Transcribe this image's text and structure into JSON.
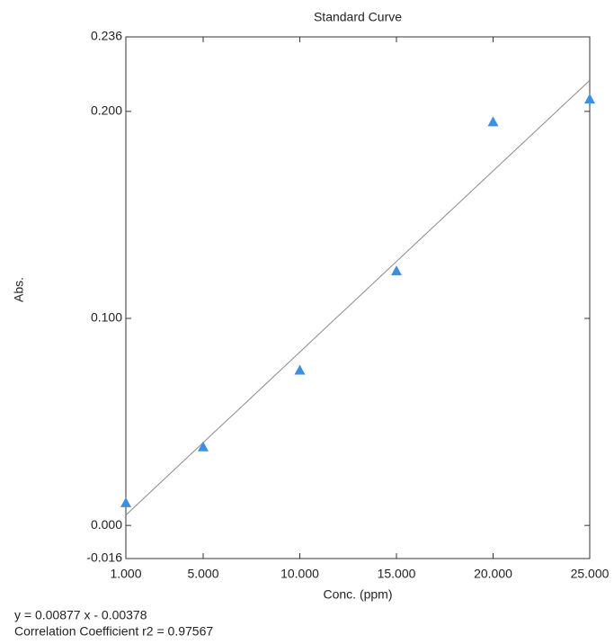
{
  "chart_data": {
    "type": "scatter",
    "title": "Standard Curve",
    "x_label": "Conc. (ppm)",
    "y_label": "Abs.",
    "x": [
      1,
      5,
      10,
      15,
      20,
      25
    ],
    "series": [
      {
        "color": "#3d8fe0",
        "values": [
          0.011,
          0.038,
          0.075,
          0.123,
          0.195,
          0.206
        ]
      }
    ],
    "fit_line": {
      "color": "#8a8a8a",
      "x": [
        1,
        25
      ],
      "values": [
        0.005,
        0.215
      ]
    },
    "xlim": [
      1,
      25
    ],
    "xticks": [
      {
        "value": 1,
        "label": "1.000"
      },
      {
        "value": 5,
        "label": "5.000"
      },
      {
        "value": 10,
        "label": "10.000"
      },
      {
        "value": 15,
        "label": "15.000"
      },
      {
        "value": 20,
        "label": "20.000"
      },
      {
        "value": 25,
        "label": "25.000"
      }
    ],
    "ylim": [
      -0.016,
      0.236
    ],
    "yticks": [
      -0.016,
      {
        "value": 0,
        "label": "0.000"
      },
      {
        "value": 0.1,
        "label": "0.100"
      },
      {
        "value": 0.2,
        "label": "0.200"
      },
      0.236
    ],
    "equation": "y = 0.00877 x - 0.00378",
    "correlation": "Correlation Coefficient r2 = 0.97567"
  }
}
